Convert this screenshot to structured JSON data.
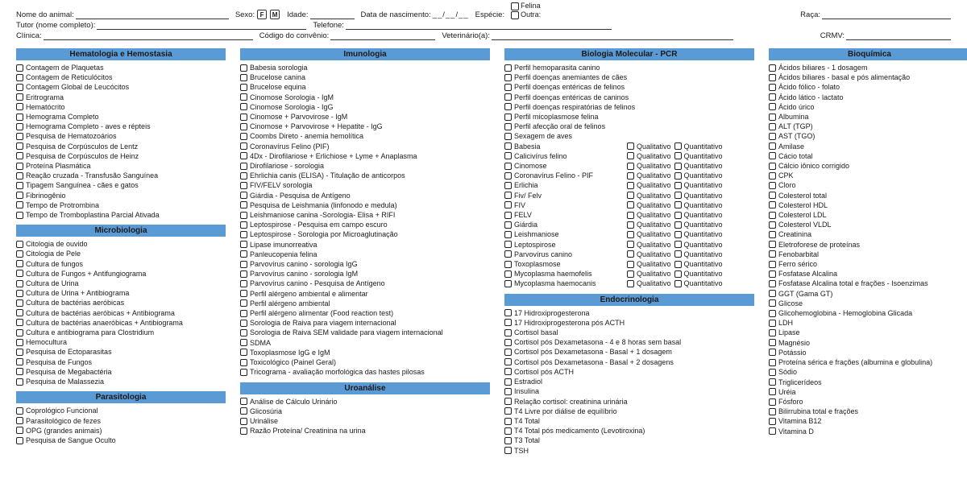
{
  "colors": {
    "section_bg": "#5b9bd5",
    "text": "#1a1a1a",
    "line": "#333333"
  },
  "header": {
    "row1": {
      "animal_name": "Nome do animal:",
      "sex": "Sexo:",
      "sex_f": "F",
      "sex_m": "M",
      "age": "Idade:",
      "dob": "Data de nascimento:",
      "dob_sep": "__/__/__",
      "species": "Espécie:",
      "species_opts": {
        "felina": "Felina",
        "outra": "Outra:"
      },
      "breed": "Raça:"
    },
    "row2": {
      "tutor": "Tutor (nome completo):",
      "phone": "Telefone:"
    },
    "row3": {
      "clinic": "Clínica:",
      "agreement": "Código do convênio:",
      "vet": "Veterinário(a):",
      "crmv": "CRMV:"
    }
  },
  "sections": {
    "hemato": {
      "title": "Hematologia e Hemostasia",
      "items": [
        "Contagem de Plaquetas",
        "Contagem de Reticulócitos",
        "Contagem Global de Leucócitos",
        "Eritrograma",
        "Hematócrito",
        "Hemograma Completo",
        "Hemograma Completo - aves e répteis",
        "Pesquisa de Hematozoários",
        "Pesquisa de Corpúsculos de Lentz",
        "Pesquisa de Corpúsculos de Heinz",
        "Proteína Plasmática",
        "Reação cruzada - Transfusão Sanguínea",
        "Tipagem Sanguínea - cães e gatos",
        "Fibrinogênio",
        "Tempo de Protrombina",
        "Tempo de Tromboplastina Parcial Ativada"
      ]
    },
    "micro": {
      "title": "Microbiologia",
      "items": [
        "Citologia de ouvido",
        "Citologia de Pele",
        "Cultura de fungos",
        "Cultura de Fungos + Antifungiograma",
        "Cultura de Urina",
        "Cultura de Urina + Antibiograma",
        "Cultura de bactérias aeróbicas",
        "Cultura de bactérias aeróbicas + Antibiograma",
        "Cultura de bactérias anaeróbicas + Antibiograma",
        "Cultura e antibiograma para Clostridium",
        "Hemocultura",
        "Pesquisa de Ectoparasitas",
        "Pesquisa de Fungos",
        "Pesquisa de Megabactéria",
        "Pesquisa de Malassezia"
      ]
    },
    "parasito": {
      "title": "Parasitologia",
      "items": [
        "Coprológico Funcional",
        "Parasitológico de fezes",
        "OPG (grandes animais)",
        "Pesquisa de Sangue Oculto"
      ]
    },
    "imuno": {
      "title": "Imunologia",
      "items": [
        "Babesia sorologia",
        "Brucelose canina",
        "Brucelose equina",
        "Cinomose Sorologia - IgM",
        "Cinomose Sorologia - IgG",
        "Cinomose + Parvovirose - IgM",
        "Cinomose + Parvovirose + Hepatite - IgG",
        "Coombs Direto - anemia hemolítica",
        "Coronavírus Felino (PIF)",
        "4Dx - Dirofilariose + Erlichiose + Lyme + Anaplasma",
        "Dirofilariose - sorologia",
        "Ehrlichia canis (ELISA) - Titulação de anticorpos",
        "FIV/FELV sorologia",
        "Giárdia - Pesquisa de Antígeno",
        "Pesquisa de Leishmania (linfonodo e medula)",
        "Leishmaniose canina -Sorologia- Elisa + RIFI",
        "Leptospirose - Pesquisa em campo escuro",
        "Leptospirose - Sorologia por Microaglutinação",
        "Lipase imunorreativa",
        "Panleucopenia felina",
        "Parvovírus canino - sorologia IgG",
        "Parvovírus canino - sorologia IgM",
        "Parvovírus canino - Pesquisa de Antígeno",
        "Perfil alérgeno ambiental e alimentar",
        "Perfil alérgeno ambiental",
        "Perfil alérgeno alimentar (Food reaction test)",
        "Sorologia de Raiva para viagem internacional",
        "Sorologia de Raiva SEM validade para viagem internacional",
        "SDMA",
        "Toxoplasmose IgG e IgM",
        "Toxicológico (Painel Geral)",
        "Tricograma - avaliação morfológica das hastes pilosas"
      ]
    },
    "uro": {
      "title": "Uroanálise",
      "items": [
        "Análise de Cálculo Urinário",
        "Glicosúria",
        "Urinálise",
        "Razão Proteína/ Creatinina na urina"
      ]
    },
    "pcr": {
      "title": "Biologia Molecular - PCR",
      "simple": [
        "Perfil hemoparasita canino",
        "Perfil doenças anemiantes de cães",
        "Perfil doenças entéricas de felinos",
        "Perfil doenças entéricas de caninos",
        "Perfil doenças respiratórias de felinos",
        "Perfil micoplasmose felina",
        "Perfil afecção oral de felinos",
        "Sexagem de aves"
      ],
      "dual": [
        "Babesia",
        "Calicivírus felino",
        "Cinomose",
        "Coronavírus Felino - PIF",
        "Erlichia",
        "Fiv/ Felv",
        "FIV",
        "FELV",
        "Giárdia",
        "Leishmaniose",
        "Leptospirose",
        "Parvovírus canino",
        "Toxoplasmose",
        "Mycoplasma haemofelis",
        "Mycoplasma haemocanis"
      ],
      "qual": "Qualitativo",
      "quant": "Quantitativo"
    },
    "endo": {
      "title": "Endocrinologia",
      "items": [
        "17 Hidroxiprogesterona",
        "17 Hidroxiprogesterona pós ACTH",
        "Cortisol basal",
        "Cortisol pós Dexametasona - 4 e 8 horas sem basal",
        "Cortisol pós Dexametasona - Basal + 1 dosagem",
        "Cortisol pós Dexametasona - Basal + 2 dosagens",
        "Cortisol pós ACTH",
        "Estradiol",
        "Insulina",
        "Relação cortisol: creatinina urinária",
        "T4 Livre por diálise de equilíbrio",
        "T4 Total",
        "T4 Total pós medicamento (Levotiroxina)",
        "T3 Total",
        "TSH"
      ]
    },
    "bioq": {
      "title": "Bioquímica",
      "items": [
        "Ácidos biliares - 1 dosagem",
        "Ácidos biliares - basal e pós alimentação",
        "Ácido fólico - folato",
        "Ácido lático - lactato",
        "Ácido úrico",
        "Albumina",
        "ALT (TGP)",
        "AST (TGO)",
        "Amilase",
        "Cácio total",
        "Cálcio iônico corrigido",
        "CPK",
        "Cloro",
        "Colesterol total",
        "Colesterol HDL",
        "Colesterol LDL",
        "Colesterol VLDL",
        "Creatinina",
        "Eletroforese de proteínas",
        "Fenobarbital",
        "Ferro sérico",
        "Fosfatase Alcalina",
        "Fosfatase Alcalina total e frações - Isoenzimas",
        "GGT (Gama GT)",
        "Glicose",
        "Glicohemoglobina - Hemoglobina Glicada",
        "LDH",
        "Lipase",
        "Magnésio",
        "Potássio",
        "Proteína sérica e frações (albumina e globulina)",
        "Sódio",
        "Triglicerídeos",
        "Uréia",
        "Fósforo",
        "Bilirrubina total e frações",
        "Vitamina B12",
        "Vitamina D"
      ]
    }
  }
}
